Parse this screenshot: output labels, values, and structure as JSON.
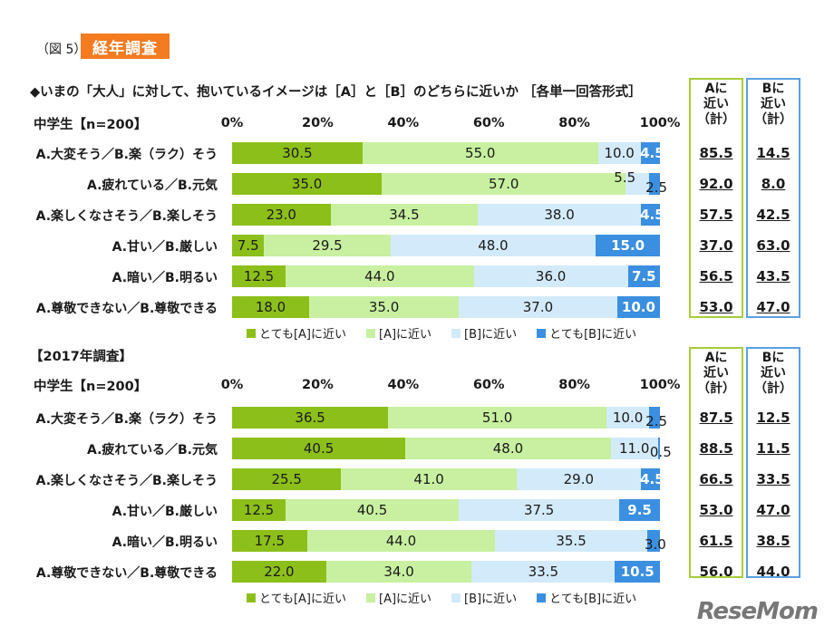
{
  "header": {
    "fig_label": "（図 5）",
    "badge": "経年調査",
    "question": "◆いまの「大人」に対して、抱いているイメージは［A］と［B］のどちらに近いか ［各単一回答形式］"
  },
  "colors": {
    "very_a": "#8cbf1a",
    "a": "#c8f0a0",
    "b": "#d3eafa",
    "very_b": "#3b8fe0",
    "a_box": "#a6cc3a",
    "b_box": "#5aa0e0"
  },
  "legend": [
    "とても[A]に近い",
    "[A]に近い",
    "[B]に近い",
    "とても[B]に近い"
  ],
  "totals_headers": {
    "a": [
      "Aに",
      "近い",
      "（計）"
    ],
    "b": [
      "Bに",
      "近い",
      "（計）"
    ]
  },
  "chart_data": [
    {
      "type": "bar",
      "orientation": "horizontal",
      "stacked": true,
      "section_title": "",
      "sample": "中学生【n=200】",
      "x_ticks": [
        "0%",
        "20%",
        "40%",
        "60%",
        "80%",
        "100%"
      ],
      "xlim": [
        0,
        100
      ],
      "categories": [
        "A.大変そう／B.楽（ラク）そう",
        "A.疲れている／B.元気",
        "A.楽しくなさそう／B.楽しそう",
        "A.甘い／B.厳しい",
        "A.暗い／B.明るい",
        "A.尊敬できない／B.尊敬できる"
      ],
      "series": [
        {
          "name": "とても[A]に近い",
          "values": [
            30.5,
            35.0,
            23.0,
            7.5,
            12.5,
            18.0
          ]
        },
        {
          "name": "[A]に近い",
          "values": [
            55.0,
            57.0,
            34.5,
            29.5,
            44.0,
            35.0
          ]
        },
        {
          "name": "[B]に近い",
          "values": [
            10.0,
            5.5,
            38.0,
            48.0,
            36.0,
            37.0
          ]
        },
        {
          "name": "とても[B]に近い",
          "values": [
            4.5,
            2.5,
            4.5,
            15.0,
            7.5,
            10.0
          ]
        }
      ],
      "totals_a": [
        "85.5",
        "92.0",
        "57.5",
        "37.0",
        "56.5",
        "53.0"
      ],
      "totals_b": [
        "14.5",
        "8.0",
        "42.5",
        "63.0",
        "43.5",
        "47.0"
      ]
    },
    {
      "type": "bar",
      "orientation": "horizontal",
      "stacked": true,
      "section_title": "【2017年調査】",
      "sample": "中学生【n=200】",
      "x_ticks": [
        "0%",
        "20%",
        "40%",
        "60%",
        "80%",
        "100%"
      ],
      "xlim": [
        0,
        100
      ],
      "categories": [
        "A.大変そう／B.楽（ラク）そう",
        "A.疲れている／B.元気",
        "A.楽しくなさそう／B.楽しそう",
        "A.甘い／B.厳しい",
        "A.暗い／B.明るい",
        "A.尊敬できない／B.尊敬できる"
      ],
      "series": [
        {
          "name": "とても[A]に近い",
          "values": [
            36.5,
            40.5,
            25.5,
            12.5,
            17.5,
            22.0
          ]
        },
        {
          "name": "[A]に近い",
          "values": [
            51.0,
            48.0,
            41.0,
            40.5,
            44.0,
            34.0
          ]
        },
        {
          "name": "[B]に近い",
          "values": [
            10.0,
            11.0,
            29.0,
            37.5,
            35.5,
            33.5
          ]
        },
        {
          "name": "とても[B]に近い",
          "values": [
            2.5,
            0.5,
            4.5,
            9.5,
            3.0,
            10.5
          ]
        }
      ],
      "totals_a": [
        "87.5",
        "88.5",
        "66.5",
        "53.0",
        "61.5",
        "56.0"
      ],
      "totals_b": [
        "12.5",
        "11.5",
        "33.5",
        "47.0",
        "38.5",
        "44.0"
      ]
    }
  ],
  "logo": "ReseMom"
}
